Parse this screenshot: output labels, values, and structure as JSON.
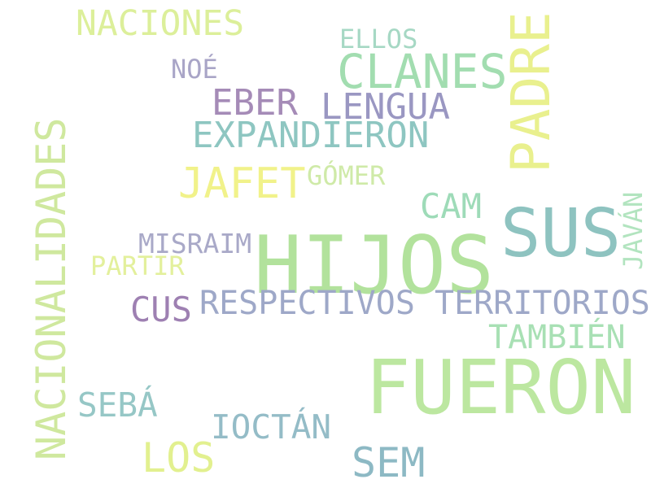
{
  "words": {
    "hijos": {
      "text": "HIJOS",
      "color": "#b2e29c"
    },
    "fueron": {
      "text": "FUERON",
      "color": "#bce7a0"
    },
    "sus": {
      "text": "SUS",
      "color": "#8ec3c0"
    },
    "padre": {
      "text": "PADRE",
      "color": "#e9f08e"
    },
    "nacionalidades": {
      "text": "NACIONALIDADES",
      "color": "#cfe89e"
    },
    "clanes": {
      "text": "CLANES",
      "color": "#a2ddb0"
    },
    "jafet": {
      "text": "JAFET",
      "color": "#f1f28a"
    },
    "sem": {
      "text": "SEM",
      "color": "#8db9c4"
    },
    "los": {
      "text": "LOS",
      "color": "#e2f08f"
    },
    "lengua": {
      "text": "LENGUA",
      "color": "#9a97c2"
    },
    "expandieron": {
      "text": "EXPANDIERON",
      "color": "#8ec6c1"
    },
    "eber": {
      "text": "EBER",
      "color": "#a58bb7"
    },
    "naciones": {
      "text": "NACIONES",
      "color": "#dcef9a"
    },
    "cam": {
      "text": "CAM",
      "color": "#9edbb8"
    },
    "respectivos": {
      "text": "RESPECTIVOS TERRITORIOS",
      "color": "#9ea8c8"
    },
    "tambien": {
      "text": "TAMBIÉN",
      "color": "#a8e0b4"
    },
    "seba": {
      "text": "SEBÁ",
      "color": "#96c7c6"
    },
    "ioctan": {
      "text": "IOCTÁN",
      "color": "#94bcc7"
    },
    "cus": {
      "text": "CUS",
      "color": "#9e80b2"
    },
    "misraim": {
      "text": "MISRAIM",
      "color": "#a9a9c8"
    },
    "partir": {
      "text": "PARTIR",
      "color": "#e3f09c"
    },
    "gomer": {
      "text": "GÓMER",
      "color": "#cfeaa8"
    },
    "noe": {
      "text": "NOÉ",
      "color": "#a9a5c7"
    },
    "ellos": {
      "text": "ELLOS",
      "color": "#a6d8c4"
    },
    "javan": {
      "text": "JAVÁN",
      "color": "#b2e4bf"
    }
  }
}
